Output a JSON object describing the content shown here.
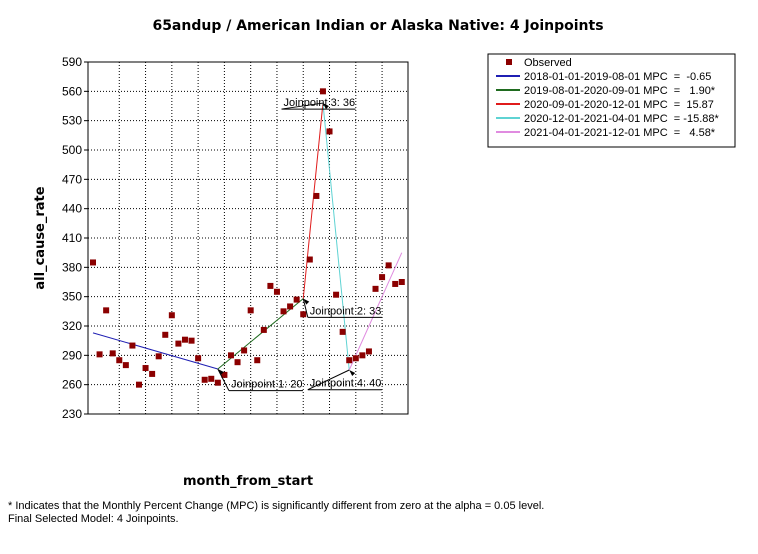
{
  "chart_data": {
    "type": "scatter",
    "title": "65andup / American Indian or Alaska Native: 4 Joinpoints",
    "xlabel": "month_from_start",
    "ylabel": "all_cause_rate",
    "xlim": [
      0,
      48
    ],
    "ylim": [
      230,
      590
    ],
    "yticks": [
      230,
      260,
      290,
      320,
      350,
      380,
      410,
      440,
      470,
      500,
      530,
      560,
      590
    ],
    "observed": {
      "name": "Observed",
      "color": "#8b0000",
      "x": [
        0,
        1,
        2,
        3,
        4,
        5,
        6,
        7,
        8,
        9,
        10,
        11,
        12,
        13,
        14,
        15,
        16,
        17,
        18,
        19,
        20,
        21,
        22,
        23,
        24,
        25,
        26,
        27,
        28,
        29,
        30,
        31,
        32,
        33,
        34,
        35,
        36,
        37,
        38,
        39,
        40,
        41,
        42,
        43,
        44,
        45,
        46,
        47
      ],
      "y": [
        385,
        291,
        336,
        292,
        285,
        280,
        300,
        260,
        277,
        271,
        289,
        311,
        331,
        302,
        306,
        305,
        287,
        265,
        266,
        262,
        270,
        290,
        283,
        295,
        336,
        285,
        316,
        361,
        355,
        335,
        340,
        347,
        332,
        388,
        453,
        560,
        519,
        352,
        314,
        285,
        287,
        290,
        294,
        358,
        370,
        382,
        363,
        365
      ]
    },
    "segments": [
      {
        "name": "2018-01-01-2019-08-01 MPC  =  -0.65",
        "color": "#1f1fb3",
        "x": [
          0,
          19
        ],
        "y": [
          313,
          276
        ]
      },
      {
        "name": "2019-08-01-2020-09-01 MPC  =   1.90*",
        "color": "#1f6b1f",
        "x": [
          19,
          32
        ],
        "y": [
          276,
          348
        ]
      },
      {
        "name": "2020-09-01-2020-12-01 MPC  =  15.87",
        "color": "#e01b1b",
        "x": [
          32,
          35
        ],
        "y": [
          348,
          548
        ]
      },
      {
        "name": "2020-12-01-2021-04-01 MPC  = -15.88*",
        "color": "#5fd3d3",
        "x": [
          35,
          39
        ],
        "y": [
          548,
          275
        ]
      },
      {
        "name": "2021-04-01-2021-12-01 MPC  =   4.58*",
        "color": "#e08be0",
        "x": [
          39,
          47
        ],
        "y": [
          275,
          395
        ]
      }
    ],
    "annotations": [
      {
        "text": "Joinpoint 1:  20",
        "x": 19,
        "y": 276,
        "lx": 21,
        "ly": 260
      },
      {
        "text": "Joinpoint 2:  33",
        "x": 32,
        "y": 348,
        "lx": 33,
        "ly": 335
      },
      {
        "text": "Joinpoint 3:  36",
        "x": 35,
        "y": 548,
        "lx": 29,
        "ly": 548
      },
      {
        "text": "Joinpoint 4:  40",
        "x": 39,
        "y": 275,
        "lx": 33,
        "ly": 261
      }
    ],
    "grid": true,
    "legend_position": "top-right"
  },
  "footnotes": {
    "line1": "* Indicates that the Monthly Percent Change (MPC) is significantly different from zero at the alpha = 0.05 level.",
    "line2": "Final Selected Model: 4 Joinpoints."
  }
}
